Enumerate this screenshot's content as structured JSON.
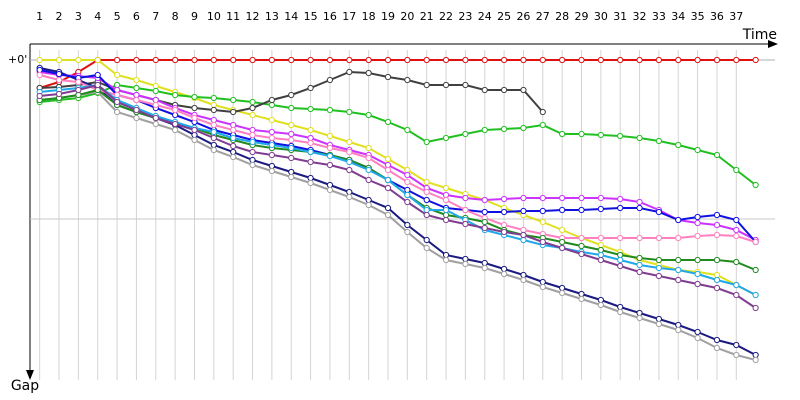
{
  "chart_data": {
    "type": "line",
    "x_label": "Time",
    "y_label": "Gap",
    "x": [
      1,
      2,
      3,
      4,
      5,
      6,
      7,
      8,
      9,
      10,
      11,
      12,
      13,
      14,
      15,
      16,
      17,
      18,
      19,
      20,
      21,
      22,
      23,
      24,
      25,
      26,
      27,
      28,
      29,
      30,
      31,
      32,
      33,
      34,
      35,
      36,
      37,
      38
    ],
    "xlim": [
      0.5,
      39
    ],
    "xticks": [
      1,
      2,
      3,
      4,
      5,
      6,
      7,
      8,
      9,
      10,
      11,
      12,
      13,
      14,
      15,
      16,
      17,
      18,
      19,
      20,
      21,
      22,
      23,
      24,
      25,
      26,
      27,
      28,
      29,
      30,
      31,
      32,
      33,
      34,
      35,
      36,
      37
    ],
    "ylim": [
      0,
      320
    ],
    "yticks": [
      {
        "value": 0,
        "label": "+0'"
      }
    ],
    "ygrid": [
      159
    ],
    "y_inverted": true,
    "series": [
      {
        "color": "#e01010",
        "values": [
          28,
          22,
          12,
          0,
          0,
          0,
          0,
          0,
          0,
          0,
          0,
          0,
          0,
          0,
          0,
          0,
          0,
          0,
          0,
          0,
          0,
          0,
          0,
          0,
          0,
          0,
          0,
          0,
          0,
          0,
          0,
          0,
          0,
          0,
          0,
          0,
          0,
          0
        ]
      },
      {
        "color": "#e0e020",
        "values": [
          0,
          0,
          0,
          0,
          15,
          20,
          26,
          32,
          38,
          45,
          50,
          55,
          60,
          65,
          70,
          76,
          82,
          88,
          99,
          110,
          122,
          128,
          134,
          140,
          148,
          155,
          162,
          170,
          178,
          185,
          192,
          200,
          205,
          210,
          212,
          215,
          225,
          235
        ]
      },
      {
        "color": "#20c020",
        "values": [
          42,
          40,
          38,
          33,
          25,
          28,
          31,
          35,
          37,
          38,
          40,
          42,
          45,
          48,
          49,
          50,
          52,
          55,
          62,
          70,
          82,
          78,
          74,
          70,
          69,
          68,
          65,
          74,
          74,
          75,
          76,
          78,
          81,
          85,
          90,
          95,
          110,
          125
        ]
      },
      {
        "color": "#404040",
        "values": [
          28,
          27,
          25,
          22,
          30,
          35,
          40,
          45,
          48,
          50,
          52,
          48,
          40,
          35,
          28,
          20,
          12,
          13,
          17,
          20,
          25,
          25,
          25,
          30,
          30,
          30,
          52,
          null,
          null,
          null,
          null,
          null,
          null,
          null,
          null,
          null,
          null,
          null
        ]
      },
      {
        "color": "#1a1a80",
        "values": [
          8,
          12,
          20,
          28,
          45,
          52,
          58,
          65,
          75,
          85,
          92,
          100,
          106,
          112,
          118,
          125,
          132,
          140,
          148,
          165,
          180,
          195,
          199,
          203,
          209,
          215,
          222,
          228,
          234,
          240,
          247,
          253,
          259,
          265,
          272,
          280,
          285,
          295
        ]
      },
      {
        "color": "#a0a0a0",
        "values": [
          40,
          38,
          35,
          32,
          52,
          58,
          64,
          70,
          80,
          90,
          97,
          105,
          111,
          117,
          123,
          130,
          137,
          145,
          155,
          172,
          188,
          200,
          204,
          208,
          214,
          220,
          227,
          233,
          239,
          245,
          252,
          258,
          264,
          270,
          278,
          288,
          295,
          300
        ]
      },
      {
        "color": "#cc33ff",
        "values": [
          12,
          15,
          16,
          18,
          30,
          35,
          40,
          48,
          55,
          60,
          65,
          70,
          72,
          74,
          78,
          85,
          90,
          95,
          105,
          115,
          128,
          135,
          138,
          140,
          139,
          138,
          138,
          138,
          138,
          138,
          139,
          142,
          150,
          160,
          163,
          165,
          170,
          180
        ]
      },
      {
        "color": "#1010e0",
        "values": [
          10,
          14,
          18,
          15,
          35,
          40,
          48,
          55,
          62,
          70,
          75,
          80,
          83,
          86,
          90,
          95,
          100,
          108,
          120,
          130,
          140,
          148,
          150,
          152,
          152,
          151,
          151,
          150,
          150,
          149,
          148,
          148,
          152,
          160,
          157,
          155,
          160,
          182
        ]
      },
      {
        "color": "#ff80c0",
        "values": [
          15,
          20,
          22,
          30,
          35,
          40,
          45,
          50,
          58,
          65,
          70,
          75,
          78,
          80,
          83,
          88,
          92,
          98,
          110,
          122,
          132,
          140,
          150,
          158,
          165,
          170,
          174,
          178,
          178,
          178,
          178,
          178,
          178,
          178,
          176,
          175,
          176,
          182
        ]
      },
      {
        "color": "#208a20",
        "values": [
          40,
          38,
          35,
          30,
          45,
          52,
          58,
          63,
          68,
          75,
          80,
          85,
          88,
          90,
          92,
          95,
          100,
          108,
          120,
          135,
          148,
          155,
          158,
          162,
          170,
          175,
          178,
          182,
          186,
          190,
          195,
          198,
          200,
          200,
          200,
          200,
          202,
          210
        ]
      },
      {
        "color": "#20a8e8",
        "values": [
          32,
          30,
          28,
          25,
          40,
          48,
          56,
          62,
          68,
          72,
          78,
          82,
          85,
          88,
          92,
          96,
          102,
          110,
          120,
          135,
          150,
          150,
          160,
          170,
          175,
          180,
          185,
          188,
          192,
          195,
          200,
          205,
          208,
          210,
          214,
          220,
          225,
          235
        ]
      },
      {
        "color": "#803c90",
        "values": [
          36,
          34,
          30,
          25,
          42,
          50,
          58,
          64,
          70,
          78,
          86,
          92,
          95,
          98,
          102,
          105,
          110,
          120,
          128,
          142,
          155,
          160,
          164,
          168,
          172,
          175,
          182,
          188,
          194,
          200,
          206,
          212,
          216,
          220,
          224,
          228,
          235,
          248
        ]
      }
    ]
  }
}
